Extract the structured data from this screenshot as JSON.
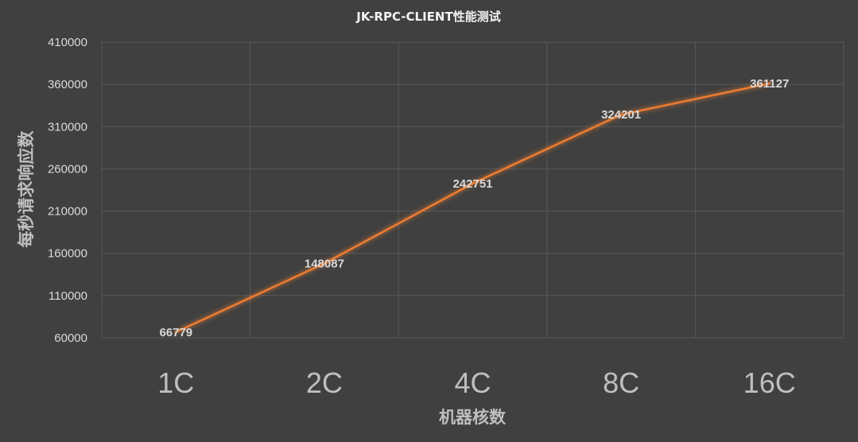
{
  "chart_data": {
    "type": "line",
    "title": "JK-RPC-CLIENT性能测试",
    "xlabel": "机器核数",
    "ylabel": "每秒请求响应数",
    "categories": [
      "1C",
      "2C",
      "4C",
      "8C",
      "16C"
    ],
    "series": [
      {
        "values": [
          66779,
          148087,
          242751,
          324201,
          361127
        ]
      }
    ],
    "ylim": [
      60000,
      410000
    ],
    "yticks": [
      60000,
      110000,
      160000,
      210000,
      260000,
      310000,
      360000,
      410000
    ],
    "grid": true,
    "legend": "none",
    "data_labels": true,
    "colors": {
      "background": "#404040",
      "line": "#ed7d31",
      "grid": "#595959"
    }
  }
}
